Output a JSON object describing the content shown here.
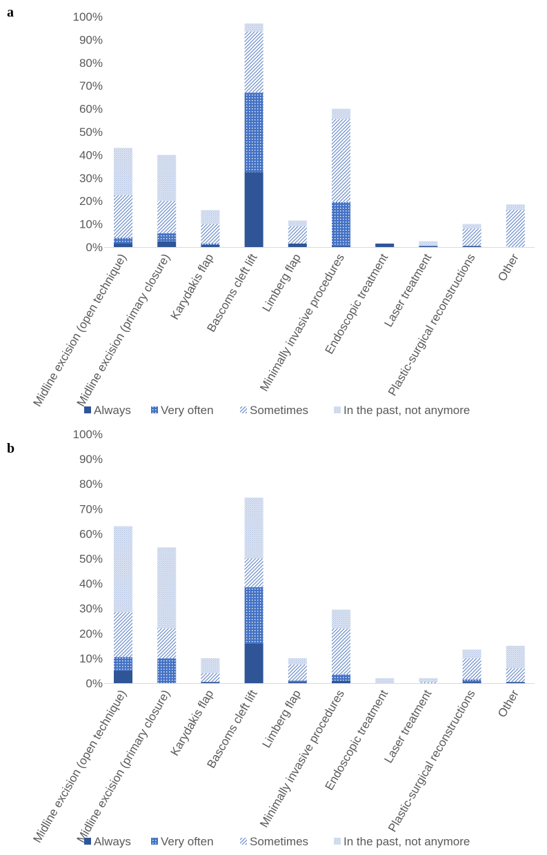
{
  "colors": {
    "always": "#2F5597",
    "very_often": "#4472C4",
    "sometimes": "#6E8FCC",
    "past": "#B4C4E4",
    "axis": "#D9D9D9",
    "text": "#595959"
  },
  "chart_data": [
    {
      "type": "bar",
      "stacked": true,
      "panel_label": "a",
      "categories": [
        "Midline excision (open technique)",
        "Midline excision (primary closure)",
        "Karydakis flap",
        "Bascoms cleft lift",
        "Limberg flap",
        "Minimally invasive procedures",
        "Endoscopic treatment",
        "Laser treatment",
        "Plastic-surgical reconstructions",
        "Other"
      ],
      "series": [
        {
          "name": "Always",
          "values": [
            1.5,
            2.5,
            1.0,
            32.5,
            1.5,
            0.5,
            1.5,
            0.5,
            0.5,
            0
          ]
        },
        {
          "name": "Very often",
          "values": [
            2.5,
            3.5,
            0.5,
            34.5,
            0,
            19.0,
            0,
            0,
            0,
            0
          ]
        },
        {
          "name": "Sometimes",
          "values": [
            18.5,
            14.0,
            8.5,
            26.5,
            7.5,
            36.0,
            0,
            0,
            7.5,
            16.0
          ]
        },
        {
          "name": "In the past, not anymore",
          "values": [
            20.5,
            20.0,
            6.0,
            3.5,
            2.5,
            4.5,
            0,
            2.0,
            2.0,
            2.5
          ]
        }
      ],
      "yticks": [
        "0%",
        "10%",
        "20%",
        "30%",
        "40%",
        "50%",
        "60%",
        "70%",
        "80%",
        "90%",
        "100%"
      ],
      "ylim": [
        0,
        100
      ],
      "grid": false,
      "legend": "bottom"
    },
    {
      "type": "bar",
      "stacked": true,
      "panel_label": "b",
      "categories": [
        "Midline excision (open technique)",
        "Midline excision (primary closure)",
        "Karydakis flap",
        "Bascoms cleft lift",
        "Limberg flap",
        "Minimally invasive procedures",
        "Endoscopic treatment",
        "Laser treatment",
        "Plastic-surgical reconstructions",
        "Other"
      ],
      "series": [
        {
          "name": "Always",
          "values": [
            5.0,
            0,
            0.5,
            16.0,
            0.5,
            1.0,
            0,
            0,
            0.5,
            0.5
          ]
        },
        {
          "name": "Very often",
          "values": [
            5.5,
            10.0,
            0,
            22.5,
            0.5,
            2.5,
            0,
            0,
            1.0,
            0
          ]
        },
        {
          "name": "Sometimes",
          "values": [
            18.0,
            12.0,
            3.5,
            11.5,
            6.5,
            18.5,
            0,
            0.5,
            8.5,
            5.5
          ]
        },
        {
          "name": "In the past, not anymore",
          "values": [
            34.5,
            32.5,
            6.0,
            24.5,
            2.5,
            7.5,
            2.0,
            1.5,
            3.5,
            9.0
          ]
        }
      ],
      "yticks": [
        "0%",
        "10%",
        "20%",
        "30%",
        "40%",
        "50%",
        "60%",
        "70%",
        "80%",
        "90%",
        "100%"
      ],
      "ylim": [
        0,
        100
      ],
      "grid": false,
      "legend": "bottom"
    }
  ]
}
